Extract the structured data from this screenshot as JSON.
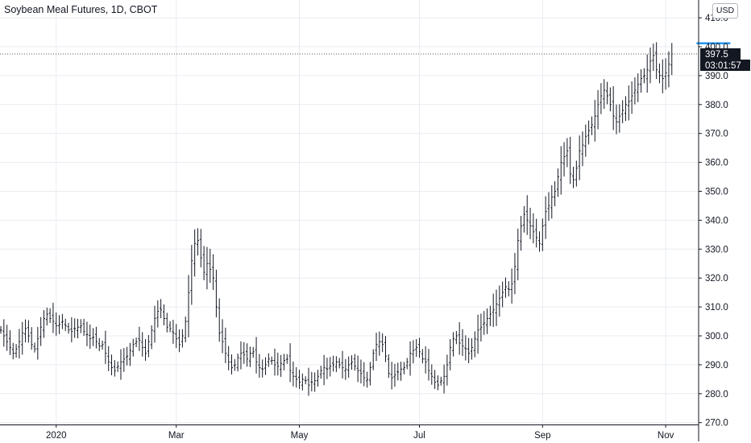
{
  "header": {
    "title": "Soybean Meal Futures, 1D, CBOT",
    "currency": "USD"
  },
  "colors": {
    "background": "#ffffff",
    "grid": "#e9ecf2",
    "bar": "#131722",
    "level_line": "#2196f3",
    "price_line": "#555555",
    "badge": "#131722"
  },
  "chart_data": {
    "type": "ohlc",
    "instrument": "Soybean Meal Futures",
    "interval": "1D",
    "exchange": "CBOT",
    "currency": "USD",
    "grid": true,
    "ylim": [
      268,
      414
    ],
    "yticks": [
      410,
      400,
      390,
      380,
      370,
      360,
      350,
      340,
      330,
      320,
      310,
      300,
      290,
      280,
      270
    ],
    "ytick_labels": [
      "410.0",
      "400.0",
      "390.0",
      "380.0",
      "370.0",
      "360.0",
      "350.0",
      "340.0",
      "330.0",
      "320.0",
      "310.0",
      "300.0",
      "290.0",
      "280.0",
      "270.0"
    ],
    "xticks": [
      "2020",
      "Mar",
      "May",
      "Jul",
      "Sep",
      "Nov"
    ],
    "xtick_positions": [
      18,
      57,
      97,
      136,
      176,
      216
    ],
    "last_price": "397.5",
    "last_price_value": 397.5,
    "countdown": "03:01:57",
    "level_line_value": 401.2,
    "level_line_range": [
      226,
      237
    ],
    "closes": [
      302.0,
      300.0,
      298.0,
      296.0,
      294.0,
      295.5,
      298.0,
      301.0,
      302.5,
      300.0,
      297.0,
      295.5,
      299.0,
      303.0,
      306.0,
      307.5,
      306.0,
      305.0,
      303.5,
      304.0,
      305.0,
      303.5,
      302.0,
      301.5,
      302.5,
      303.0,
      303.5,
      301.5,
      300.5,
      299.0,
      299.5,
      298.0,
      296.5,
      297.0,
      294.0,
      291.0,
      289.0,
      288.0,
      289.5,
      291.0,
      292.0,
      293.0,
      295.0,
      297.0,
      298.0,
      298.5,
      296.0,
      294.0,
      298.0,
      302.0,
      306.0,
      308.5,
      309.0,
      306.0,
      303.0,
      302.5,
      301.0,
      299.0,
      297.0,
      300.0,
      305.0,
      315.0,
      326.0,
      332.0,
      333.0,
      327.0,
      322.0,
      325.0,
      323.0,
      320.0,
      310.0,
      301.0,
      298.0,
      294.0,
      291.0,
      289.0,
      290.0,
      292.5,
      294.0,
      293.5,
      292.0,
      294.0,
      294.5,
      291.0,
      289.0,
      288.5,
      290.0,
      292.0,
      291.5,
      290.0,
      289.5,
      290.5,
      291.5,
      292.0,
      288.0,
      286.0,
      285.0,
      284.0,
      285.0,
      284.5,
      283.0,
      284.0,
      284.5,
      286.0,
      288.0,
      289.0,
      288.5,
      289.5,
      290.0,
      291.0,
      290.0,
      289.0,
      288.5,
      290.0,
      291.0,
      289.5,
      288.0,
      287.0,
      285.5,
      285.0,
      289.0,
      294.0,
      297.0,
      298.0,
      297.0,
      293.0,
      287.0,
      285.5,
      286.5,
      287.5,
      288.5,
      289.0,
      291.0,
      294.0,
      295.0,
      296.0,
      294.5,
      292.0,
      291.0,
      288.0,
      286.0,
      284.0,
      283.0,
      284.5,
      286.0,
      290.0,
      296.0,
      299.0,
      300.0,
      297.5,
      296.5,
      295.5,
      294.0,
      296.0,
      299.0,
      302.0,
      303.0,
      304.5,
      306.0,
      307.5,
      309.0,
      311.0,
      313.0,
      315.0,
      317.0,
      316.0,
      318.0,
      324.0,
      333.0,
      338.0,
      342.0,
      340.0,
      338.0,
      336.0,
      334.0,
      332.0,
      338.0,
      343.0,
      345.0,
      348.0,
      350.0,
      355.0,
      360.0,
      362.0,
      364.0,
      356.0,
      354.0,
      358.0,
      364.0,
      366.0,
      369.0,
      371.0,
      373.0,
      376.0,
      380.0,
      383.0,
      385.0,
      383.0,
      380.0,
      376.0,
      374.0,
      376.0,
      378.0,
      380.0,
      381.0,
      383.0,
      385.0,
      387.0,
      389.0,
      390.0,
      392.0,
      395.0,
      397.0,
      392.0,
      390.0,
      389.0,
      391.0,
      394.0,
      397.5
    ]
  }
}
